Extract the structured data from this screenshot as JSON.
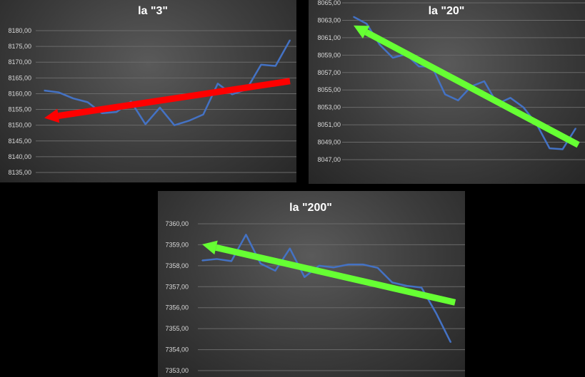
{
  "charts": [
    {
      "title": "la \"3\"",
      "chart_data": {
        "type": "line",
        "title": "la \"3\"",
        "ylim": [
          8135,
          8180
        ],
        "yticks": [
          "8135,00",
          "8140,00",
          "8145,00",
          "8150,00",
          "8155,00",
          "8160,00",
          "8165,00",
          "8170,00",
          "8175,00",
          "8180,00"
        ],
        "tick_values": [
          8135,
          8140,
          8145,
          8150,
          8155,
          8160,
          8165,
          8170,
          8175,
          8180
        ],
        "grid": true,
        "series": [
          {
            "values": [
              8161,
              8160.4,
              8158.5,
              8157.3,
              8153.8,
              8154.2,
              8157.5,
              8150.3,
              8155.6,
              8150,
              8151.4,
              8153.4,
              8163.2,
              8159.8,
              8161.4,
              8169.2,
              8168.8,
              8177
            ]
          }
        ],
        "x": [
          1,
          2,
          3,
          4,
          5,
          6,
          7,
          8,
          9,
          10,
          11,
          12,
          13,
          14,
          15,
          16,
          17,
          18
        ],
        "arrow": {
          "color": "#ff0000",
          "from": [
            18,
            8164
          ],
          "to": [
            1,
            8152.3
          ]
        }
      }
    },
    {
      "title": "la \"20\"",
      "chart_data": {
        "type": "line",
        "title": "la \"20\"",
        "ylim": [
          8047,
          8065
        ],
        "yticks": [
          "8047,00",
          "8049,00",
          "8051,00",
          "8053,00",
          "8055,00",
          "8057,00",
          "8059,00",
          "8061,00",
          "8063,00",
          "8065,00"
        ],
        "tick_values": [
          8047,
          8049,
          8051,
          8053,
          8055,
          8057,
          8059,
          8061,
          8063,
          8065
        ],
        "grid": true,
        "series": [
          {
            "values": [
              8063.4,
              8062.6,
              8060.2,
              8058.7,
              8059.1,
              8057.7,
              8057.7,
              8054.5,
              8053.8,
              8055.4,
              8056,
              8053.4,
              8054.1,
              8053,
              8051.1,
              8048.3,
              8048.2,
              8050.6
            ]
          }
        ],
        "x": [
          1,
          2,
          3,
          4,
          5,
          6,
          7,
          8,
          9,
          10,
          11,
          12,
          13,
          14,
          15,
          16,
          17,
          18
        ],
        "arrow": {
          "color": "#66ff33",
          "from": [
            18.2,
            8048.7
          ],
          "to": [
            1,
            8062.4
          ]
        }
      }
    },
    {
      "title": "la \"200\"",
      "chart_data": {
        "type": "line",
        "title": "la \"200\"",
        "ylim": [
          7353,
          7360
        ],
        "yticks": [
          "7353,00",
          "7354,00",
          "7355,00",
          "7356,00",
          "7357,00",
          "7358,00",
          "7359,00",
          "7360,00"
        ],
        "tick_values": [
          7353,
          7354,
          7355,
          7356,
          7357,
          7358,
          7359,
          7360
        ],
        "grid": true,
        "series": [
          {
            "values": [
              7358.25,
              7358.32,
              7358.22,
              7359.48,
              7358.1,
              7357.76,
              7358.82,
              7357.46,
              7358,
              7357.92,
              7358.06,
              7358.06,
              7357.9,
              7357.2,
              7357.04,
              7356.96,
              7355.74,
              7354.35
            ]
          }
        ],
        "x": [
          1,
          2,
          3,
          4,
          5,
          6,
          7,
          8,
          9,
          10,
          11,
          12,
          13,
          14,
          15,
          16,
          17,
          18
        ],
        "arrow": {
          "color": "#66ff33",
          "from": [
            18.3,
            7356.25
          ],
          "to": [
            1,
            7359.02
          ]
        }
      }
    }
  ]
}
